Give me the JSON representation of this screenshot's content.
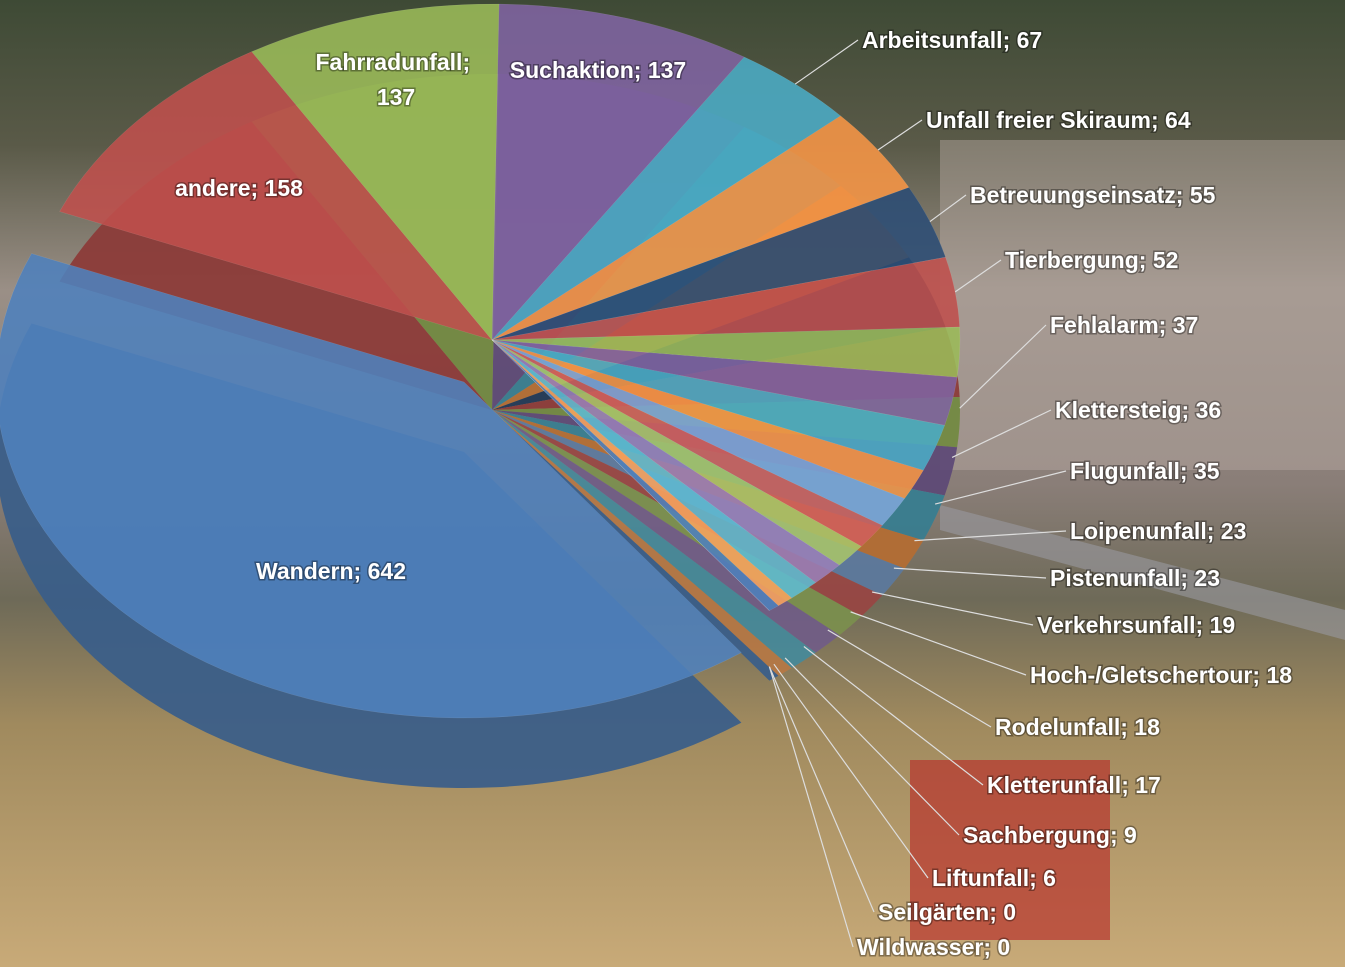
{
  "chart_data": {
    "type": "pie",
    "label_separator": "; ",
    "categories": [
      "Suchaktion",
      "Arbeitsunfall",
      "Unfall freier Skiraum",
      "Betreuungseinsatz",
      "Tierbergung",
      "Fehlalarm",
      "Klettersteig",
      "Flugunfall",
      "Loipenunfall",
      "Pistenunfall",
      "Verkehrsunfall",
      "Hoch-/Gletschertour",
      "Rodelunfall",
      "Kletterunfall",
      "Sachbergung",
      "Liftunfall",
      "Seilgärten",
      "Wildwasser",
      "Wandern",
      "andere",
      "Fahrradunfall"
    ],
    "values": [
      137,
      67,
      64,
      55,
      52,
      37,
      36,
      35,
      23,
      23,
      19,
      18,
      18,
      17,
      9,
      6,
      0,
      0,
      642,
      158,
      137
    ],
    "colors": [
      "#8064a2",
      "#4bacc6",
      "#f79646",
      "#2c4d75",
      "#c0504d",
      "#9bbb59",
      "#8064a2",
      "#4bacc6",
      "#f79646",
      "#7ea6d8",
      "#d0605c",
      "#a9c56a",
      "#9a80b8",
      "#5fbcd3",
      "#f9a45e",
      "#4f81bd",
      "#c0504d",
      "#9bbb59",
      "#4f81bd",
      "#c0504d",
      "#9bbb59"
    ]
  }
}
